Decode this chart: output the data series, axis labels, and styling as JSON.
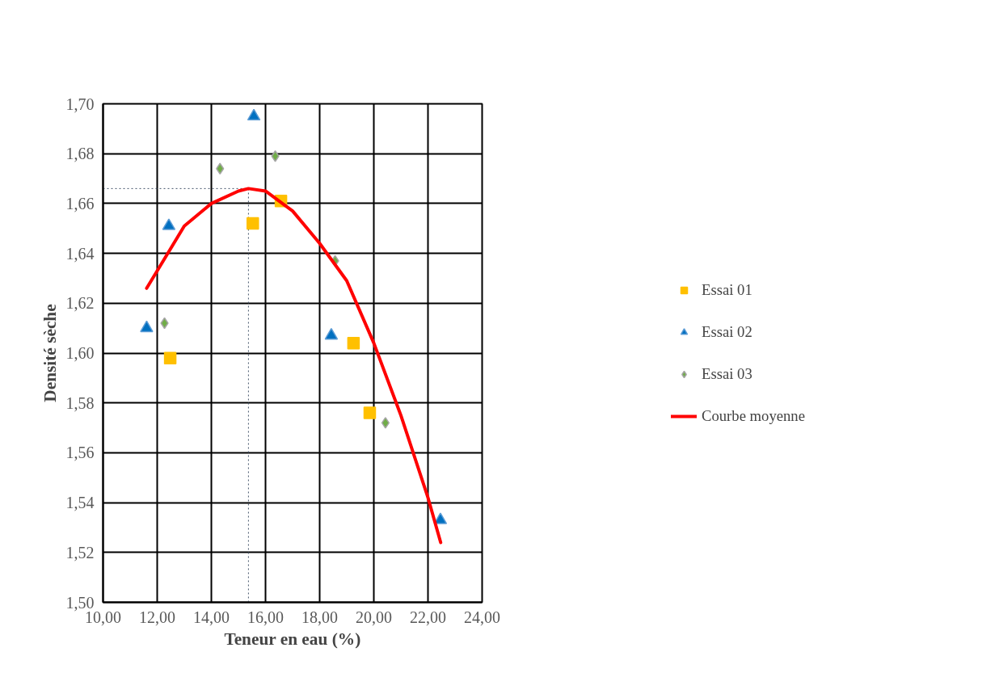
{
  "chart_data": {
    "type": "scatter",
    "xlabel": "Teneur en eau (%)",
    "ylabel": "Densité sèche",
    "xlim": [
      10,
      24
    ],
    "ylim": [
      1.5,
      1.7
    ],
    "xticks": [
      {
        "value": 10,
        "label": "10,00"
      },
      {
        "value": 12,
        "label": "12,00"
      },
      {
        "value": 14,
        "label": "14,00"
      },
      {
        "value": 16,
        "label": "16,00"
      },
      {
        "value": 18,
        "label": "18,00"
      },
      {
        "value": 20,
        "label": "20,00"
      },
      {
        "value": 22,
        "label": "22,00"
      },
      {
        "value": 24,
        "label": "24,00"
      }
    ],
    "yticks": [
      {
        "value": 1.5,
        "label": "1,50"
      },
      {
        "value": 1.52,
        "label": "1,52"
      },
      {
        "value": 1.54,
        "label": "1,54"
      },
      {
        "value": 1.56,
        "label": "1,56"
      },
      {
        "value": 1.58,
        "label": "1,58"
      },
      {
        "value": 1.6,
        "label": "1,60"
      },
      {
        "value": 1.62,
        "label": "1,62"
      },
      {
        "value": 1.64,
        "label": "1,64"
      },
      {
        "value": 1.66,
        "label": "1,66"
      },
      {
        "value": 1.68,
        "label": "1,68"
      },
      {
        "value": 1.7,
        "label": "1,70"
      }
    ],
    "grid": true,
    "legend": "right",
    "series": [
      {
        "name": "Essai 01",
        "marker": "square",
        "color": "#ffc000",
        "x": [
          12.48,
          15.53,
          16.57,
          19.25,
          19.85
        ],
        "values": [
          1.598,
          1.652,
          1.661,
          1.604,
          1.576
        ]
      },
      {
        "name": "Essai 02",
        "marker": "triangle",
        "color": "#0070c0",
        "x": [
          11.61,
          12.43,
          15.57,
          18.43,
          22.46
        ],
        "values": [
          1.61,
          1.651,
          1.695,
          1.607,
          1.533
        ]
      },
      {
        "name": "Essai 03",
        "marker": "diamond",
        "color": "#70ad47",
        "x": [
          12.27,
          14.32,
          16.36,
          18.57,
          20.43
        ],
        "values": [
          1.612,
          1.674,
          1.679,
          1.637,
          1.572
        ]
      },
      {
        "name": "Courbe moyenne",
        "type": "line",
        "color": "#ff0000",
        "x": [
          11.61,
          12,
          13,
          14,
          15,
          15.37,
          16,
          17,
          18,
          19,
          20,
          21,
          22,
          22.47
        ],
        "values": [
          1.626,
          1.633,
          1.651,
          1.66,
          1.665,
          1.666,
          1.665,
          1.657,
          1.644,
          1.629,
          1.604,
          1.575,
          1.542,
          1.524
        ]
      }
    ],
    "ref_lines": [
      {
        "axis": "y",
        "value": 1.666,
        "color": "#44546a",
        "line_style": "dotted"
      },
      {
        "axis": "x",
        "value": 15.37,
        "color": "#44546a",
        "line_style": "dotted"
      }
    ]
  }
}
